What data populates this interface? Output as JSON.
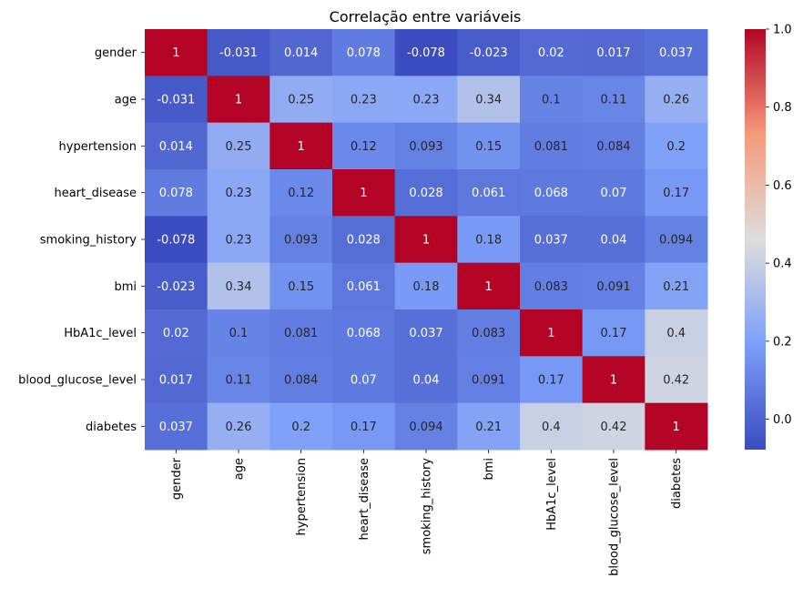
{
  "chart_data": {
    "type": "heatmap",
    "title": "Correlação entre variáveis",
    "xlabel": "",
    "ylabel": "",
    "variables": [
      "gender",
      "age",
      "hypertension",
      "heart_disease",
      "smoking_history",
      "bmi",
      "HbA1c_level",
      "blood_glucose_level",
      "diabetes"
    ],
    "matrix": [
      [
        1,
        -0.031,
        0.014,
        0.078,
        -0.078,
        -0.023,
        0.02,
        0.017,
        0.037
      ],
      [
        -0.031,
        1,
        0.25,
        0.23,
        0.23,
        0.34,
        0.1,
        0.11,
        0.26
      ],
      [
        0.014,
        0.25,
        1,
        0.12,
        0.093,
        0.15,
        0.081,
        0.084,
        0.2
      ],
      [
        0.078,
        0.23,
        0.12,
        1,
        0.028,
        0.061,
        0.068,
        0.07,
        0.17
      ],
      [
        -0.078,
        0.23,
        0.093,
        0.028,
        1,
        0.18,
        0.037,
        0.04,
        0.094
      ],
      [
        -0.023,
        0.34,
        0.15,
        0.061,
        0.18,
        1,
        0.083,
        0.091,
        0.21
      ],
      [
        0.02,
        0.1,
        0.081,
        0.068,
        0.037,
        0.083,
        1,
        0.17,
        0.4
      ],
      [
        0.017,
        0.11,
        0.084,
        0.07,
        0.04,
        0.091,
        0.17,
        1,
        0.42
      ],
      [
        0.037,
        0.26,
        0.2,
        0.17,
        0.094,
        0.21,
        0.4,
        0.42,
        1
      ]
    ],
    "colormap": "coolwarm",
    "vmin": -0.078,
    "vmax": 1.0,
    "colorbar": {
      "ticks": [
        0.0,
        0.2,
        0.4,
        0.6,
        0.8,
        1.0
      ],
      "tick_labels": [
        "0.0",
        "0.2",
        "0.4",
        "0.6",
        "0.8",
        "1.0"
      ],
      "placement": "right"
    },
    "annotations": true,
    "grid": false
  }
}
